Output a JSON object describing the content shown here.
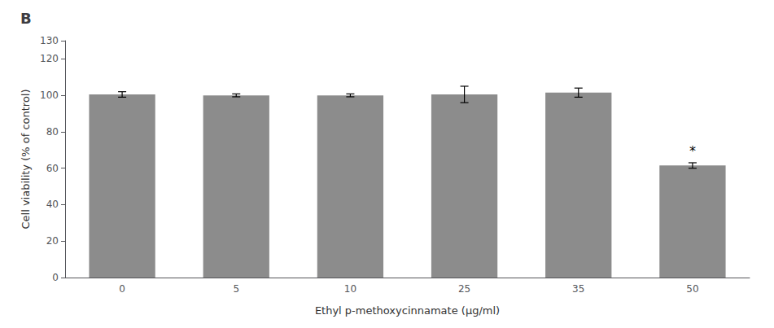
{
  "chart_data": {
    "type": "bar",
    "title": "B",
    "categories": [
      "0",
      "5",
      "10",
      "25",
      "35",
      "50"
    ],
    "values": [
      100.5,
      100.0,
      100.0,
      100.5,
      101.5,
      61.5
    ],
    "errors": [
      1.5,
      0.8,
      0.8,
      4.5,
      2.5,
      1.5
    ],
    "color": "#8c8c8c",
    "xlabel": "Ethyl p-methoxycinnamate (μg/ml)",
    "ylabel": "Cell viability (% of control)",
    "ylim": [
      0,
      130
    ],
    "yticks": [
      0,
      20,
      40,
      60,
      80,
      100,
      120
    ],
    "annotations": [
      {
        "text": "*",
        "category": "50"
      }
    ],
    "grid": false
  }
}
